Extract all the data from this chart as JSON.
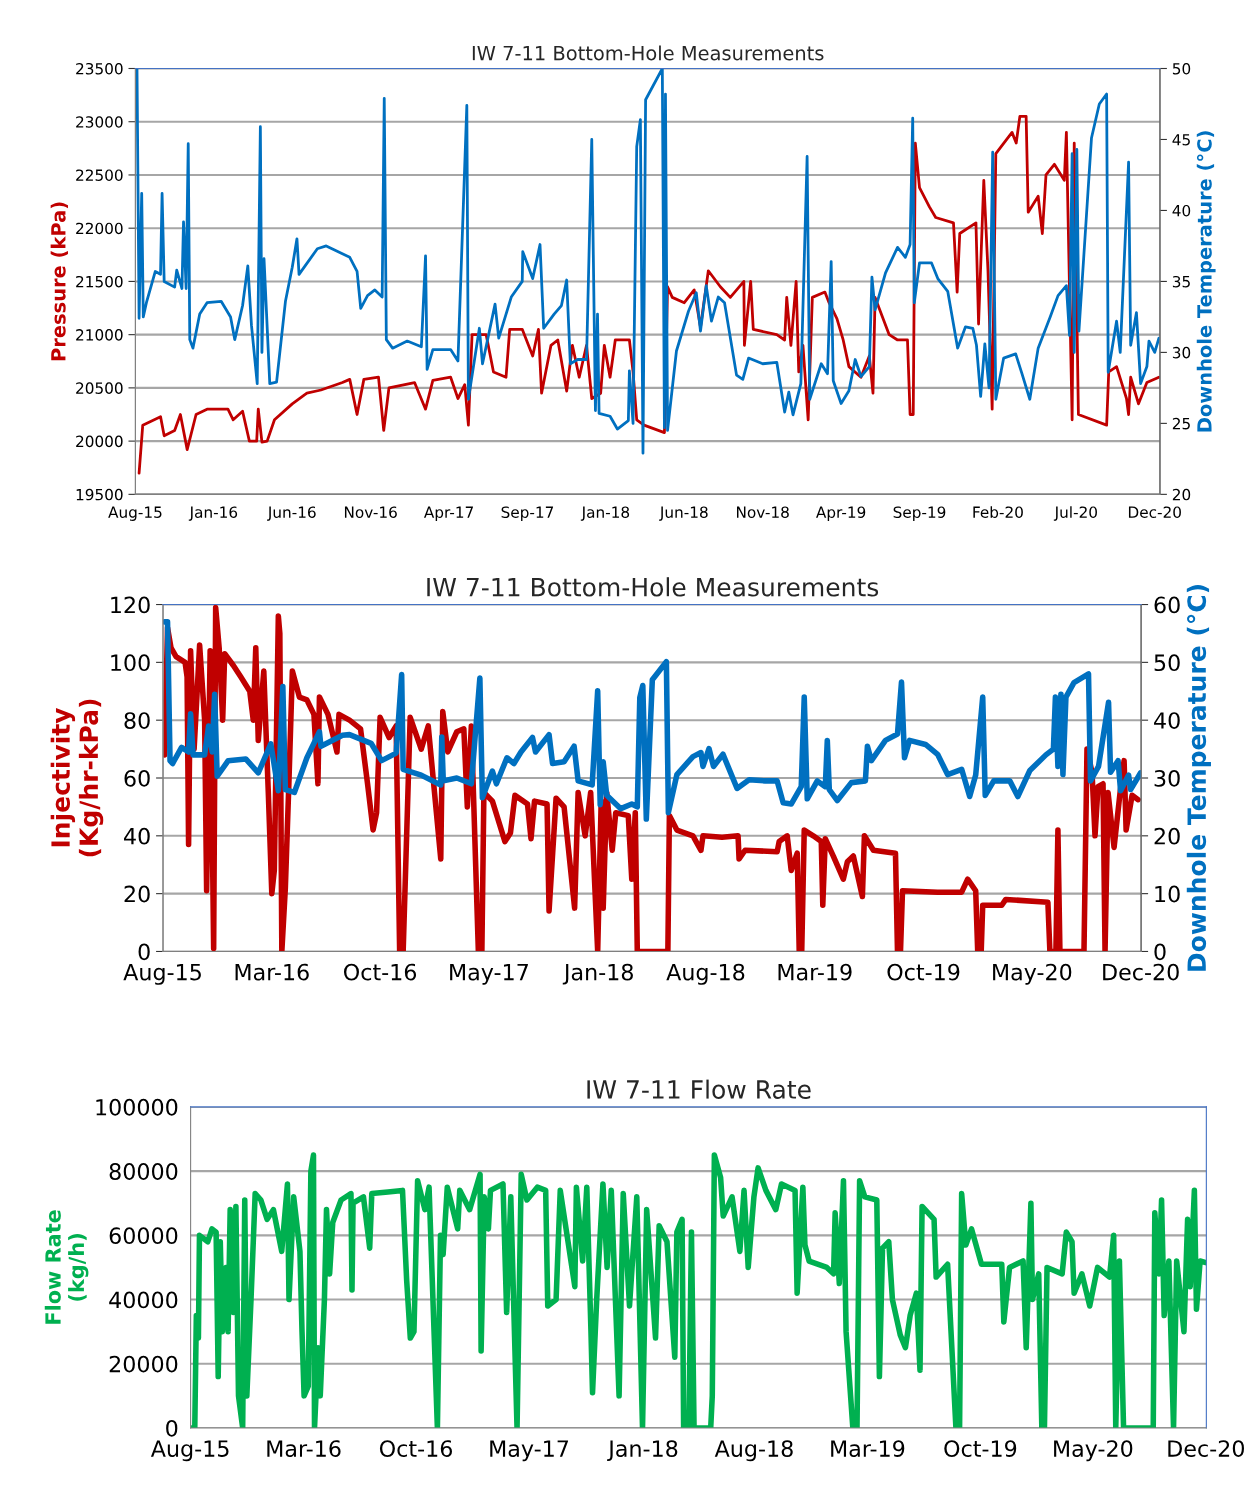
{
  "chart_data": [
    {
      "type": "line",
      "title": "IW 7-11 Bottom-Hole Measurements",
      "ylabel": "Pressure (kPa)",
      "y2label": "Downhole Temperature (°C)",
      "xlim": [
        "2015-08-15",
        "2020-12-26"
      ],
      "xticks": [
        {
          "value": "2015-08-15",
          "label": "Aug-15"
        },
        {
          "value": "2016-01-12",
          "label": "Jan-16"
        },
        {
          "value": "2016-06-10",
          "label": "Jun-16"
        },
        {
          "value": "2016-11-07",
          "label": "Nov-16"
        },
        {
          "value": "2017-04-06",
          "label": "Apr-17"
        },
        {
          "value": "2017-09-03",
          "label": "Sep-17"
        },
        {
          "value": "2018-01-31",
          "label": "Jan-18"
        },
        {
          "value": "2018-06-30",
          "label": "Jun-18"
        },
        {
          "value": "2018-11-27",
          "label": "Nov-18"
        },
        {
          "value": "2019-04-26",
          "label": "Apr-19"
        },
        {
          "value": "2019-09-23",
          "label": "Sep-19"
        },
        {
          "value": "2020-02-20",
          "label": "Feb-20"
        },
        {
          "value": "2020-07-19",
          "label": "Jul-20"
        },
        {
          "value": "2020-12-16",
          "label": "Dec-20"
        }
      ],
      "ylim": [
        19500,
        23500
      ],
      "yticks": [
        19500,
        20000,
        20500,
        21000,
        21500,
        22000,
        22500,
        23000,
        23500
      ],
      "y2lim": [
        20,
        50
      ],
      "y2ticks": [
        20,
        25,
        30,
        35,
        40,
        45,
        50
      ],
      "grid": "y",
      "series": [
        {
          "color": "#c00000",
          "x": [
            "2015-08-22",
            "2015-08-29",
            "2015-10-02",
            "2015-10-09",
            "2015-10-29",
            "2015-11-09",
            "2015-11-22",
            "2015-12-09",
            "2015-12-30",
            "2016-02-08",
            "2016-02-18",
            "2016-03-07",
            "2016-03-20",
            "2016-04-03",
            "2016-04-06",
            "2016-04-13",
            "2016-04-23",
            "2016-05-07",
            "2016-06-10",
            "2016-07-08",
            "2016-08-04",
            "2016-09-14",
            "2016-09-28",
            "2016-10-12",
            "2016-10-25",
            "2016-11-22",
            "2016-12-02",
            "2016-12-12",
            "2017-01-30",
            "2017-02-20",
            "2017-03-06",
            "2017-04-09",
            "2017-04-23",
            "2017-05-06",
            "2017-05-13",
            "2017-05-20",
            "2017-06-16",
            "2017-06-30",
            "2017-07-24",
            "2017-07-31",
            "2017-08-24",
            "2017-09-13",
            "2017-09-24",
            "2017-09-30",
            "2017-10-18",
            "2017-10-31",
            "2017-11-17",
            "2017-11-28",
            "2017-12-11",
            "2017-12-25",
            "2018-01-04",
            "2018-01-21",
            "2018-01-28",
            "2018-02-08",
            "2018-02-18",
            "2018-03-17",
            "2018-03-24",
            "2018-03-31",
            "2018-04-14",
            "2018-05-23",
            "2018-05-29",
            "2018-06-07",
            "2018-06-30",
            "2018-07-19",
            "2018-07-31",
            "2018-08-15",
            "2018-09-07",
            "2018-09-26",
            "2018-10-22",
            "2018-10-23",
            "2018-11-04",
            "2018-11-09",
            "2018-12-24",
            "2019-01-08",
            "2019-01-12",
            "2019-01-20",
            "2019-01-30",
            "2019-02-04",
            "2019-02-12",
            "2019-02-22",
            "2019-03-02",
            "2019-03-26",
            "2019-04-03",
            "2019-04-18",
            "2019-04-30",
            "2019-05-11",
            "2019-06-03",
            "2019-06-19",
            "2019-06-26",
            "2019-06-30",
            "2019-07-27",
            "2019-08-12",
            "2019-08-31",
            "2019-09-05",
            "2019-09-11",
            "2019-09-15",
            "2019-09-23",
            "2019-10-12",
            "2019-10-24",
            "2019-11-27",
            "2019-12-04",
            "2019-12-09",
            "2020-01-09",
            "2020-01-14",
            "2020-01-24",
            "2020-02-01",
            "2020-02-09",
            "2020-02-16",
            "2020-03-18",
            "2020-03-26",
            "2020-04-02",
            "2020-04-14",
            "2020-04-18",
            "2020-05-07",
            "2020-05-15",
            "2020-05-22",
            "2020-06-07",
            "2020-06-26",
            "2020-06-30",
            "2020-07-11",
            "2020-07-15",
            "2020-07-23",
            "2020-09-15",
            "2020-09-19",
            "2020-10-04",
            "2020-10-23",
            "2020-10-27",
            "2020-10-31",
            "2020-11-15",
            "2020-12-01",
            "2020-12-24"
          ],
          "values": [
            19700,
            20150,
            20230,
            20050,
            20100,
            20250,
            19920,
            20250,
            20300,
            20300,
            20200,
            20280,
            20000,
            20000,
            20300,
            19990,
            20000,
            20200,
            20350,
            20450,
            20480,
            20550,
            20580,
            20250,
            20580,
            20600,
            20100,
            20500,
            20550,
            20300,
            20570,
            20600,
            20400,
            20530,
            20150,
            21000,
            21000,
            20650,
            20600,
            21050,
            21050,
            20800,
            21050,
            20450,
            20900,
            20950,
            20470,
            20900,
            20600,
            20900,
            20400,
            20450,
            20900,
            20600,
            20950,
            20950,
            20650,
            20200,
            20150,
            20080,
            21450,
            21350,
            21300,
            21420,
            21070,
            21600,
            21450,
            21350,
            21500,
            20900,
            21500,
            21050,
            21000,
            20950,
            21350,
            20900,
            21500,
            20650,
            20900,
            20200,
            21350,
            21400,
            21300,
            21150,
            20950,
            20700,
            20600,
            20800,
            20450,
            21350,
            21000,
            20950,
            20950,
            20250,
            20250,
            22800,
            22380,
            22200,
            22100,
            22050,
            21400,
            21950,
            22050,
            21100,
            22450,
            21600,
            20300,
            22700,
            22900,
            22800,
            23050,
            23050,
            22150,
            22300,
            21950,
            22500,
            22600,
            22450,
            22900,
            20200,
            22800,
            20250,
            20150,
            20650,
            20700,
            20400,
            20250,
            20600,
            20350,
            20550,
            20600
          ]
        },
        {
          "color": "#0070c0",
          "axis": "y2",
          "x": [
            "2015-08-18",
            "2015-08-22",
            "2015-08-27",
            "2015-08-30",
            "2015-09-05",
            "2015-09-22",
            "2015-10-02",
            "2015-10-05",
            "2015-10-09",
            "2015-10-29",
            "2015-11-02",
            "2015-11-12",
            "2015-11-15",
            "2015-11-20",
            "2015-11-24",
            "2015-11-27",
            "2015-12-03",
            "2015-12-16",
            "2015-12-30",
            "2016-01-26",
            "2016-02-13",
            "2016-02-21",
            "2016-03-07",
            "2016-03-17",
            "2016-03-24",
            "2016-04-04",
            "2016-04-10",
            "2016-04-13",
            "2016-04-17",
            "2016-04-28",
            "2016-05-11",
            "2016-05-28",
            "2016-06-10",
            "2016-06-19",
            "2016-06-23",
            "2016-07-28",
            "2016-08-14",
            "2016-09-28",
            "2016-10-12",
            "2016-10-19",
            "2016-11-01",
            "2016-11-15",
            "2016-11-29",
            "2016-12-03",
            "2016-12-07",
            "2016-12-19",
            "2017-01-16",
            "2017-02-12",
            "2017-02-20",
            "2017-02-23",
            "2017-03-06",
            "2017-04-09",
            "2017-04-23",
            "2017-05-10",
            "2017-05-13",
            "2017-06-03",
            "2017-06-09",
            "2017-07-03",
            "2017-07-10",
            "2017-08-03",
            "2017-08-24",
            "2017-08-25",
            "2017-09-13",
            "2017-09-27",
            "2017-10-04",
            "2017-10-24",
            "2017-11-07",
            "2017-11-17",
            "2017-11-24",
            "2017-12-08",
            "2017-12-25",
            "2018-01-04",
            "2018-01-11",
            "2018-01-15",
            "2018-01-18",
            "2018-02-08",
            "2018-02-22",
            "2018-03-15",
            "2018-03-17",
            "2018-03-24",
            "2018-03-31",
            "2018-04-07",
            "2018-04-12",
            "2018-04-17",
            "2018-05-19",
            "2018-05-23",
            "2018-05-25",
            "2018-05-29",
            "2018-06-15",
            "2018-07-08",
            "2018-07-23",
            "2018-07-31",
            "2018-08-11",
            "2018-08-21",
            "2018-09-03",
            "2018-09-15",
            "2018-10-08",
            "2018-10-20",
            "2018-10-31",
            "2018-11-27",
            "2018-12-24",
            "2019-01-08",
            "2019-01-16",
            "2019-01-24",
            "2019-02-08",
            "2019-02-20",
            "2019-02-25",
            "2019-03-19",
            "2019-03-31",
            "2019-04-07",
            "2019-04-11",
            "2019-04-26",
            "2019-05-11",
            "2019-05-23",
            "2019-06-03",
            "2019-06-19",
            "2019-06-24",
            "2019-06-30",
            "2019-07-20",
            "2019-08-12",
            "2019-08-27",
            "2019-09-05",
            "2019-09-10",
            "2019-09-13",
            "2019-09-23",
            "2019-10-16",
            "2019-10-28",
            "2019-11-16",
            "2019-12-05",
            "2019-12-20",
            "2020-01-03",
            "2020-01-10",
            "2020-01-18",
            "2020-01-26",
            "2020-02-03",
            "2020-02-10",
            "2020-02-16",
            "2020-03-02",
            "2020-03-25",
            "2020-04-06",
            "2020-04-21",
            "2020-05-07",
            "2020-05-30",
            "2020-06-14",
            "2020-06-30",
            "2020-07-06",
            "2020-07-11",
            "2020-07-15",
            "2020-07-20",
            "2020-07-24",
            "2020-08-17",
            "2020-09-01",
            "2020-09-15",
            "2020-09-18",
            "2020-10-04",
            "2020-10-11",
            "2020-10-27",
            "2020-10-31",
            "2020-11-11",
            "2020-11-19",
            "2020-12-01",
            "2020-12-05",
            "2020-12-16",
            "2020-12-24"
          ],
          "values": [
            50,
            32.4,
            41.2,
            32.5,
            33.5,
            35.7,
            35.5,
            41.2,
            35,
            34.6,
            35.8,
            34.5,
            39.2,
            34.5,
            44.7,
            30.9,
            30.3,
            32.7,
            33.5,
            33.6,
            32.5,
            30.9,
            33.3,
            36.1,
            31.9,
            27.8,
            45.9,
            30,
            36.6,
            27.8,
            27.9,
            33.6,
            36,
            38,
            35.5,
            37.3,
            37.5,
            36.7,
            35.7,
            33.1,
            34,
            34.4,
            33.9,
            47.9,
            30.9,
            30.3,
            30.8,
            30.4,
            36.8,
            28.8,
            30.2,
            30.2,
            29.4,
            47.4,
            26.7,
            31.7,
            29.2,
            33.4,
            31,
            33.9,
            35,
            37.1,
            35.2,
            37.6,
            31.7,
            32.7,
            33.3,
            35.1,
            29.2,
            29.5,
            29.5,
            45,
            25.9,
            32.7,
            25.7,
            25.5,
            24.6,
            25.2,
            28.7,
            25,
            44.5,
            46.4,
            22.9,
            47.8,
            50,
            24.7,
            48.2,
            24.5,
            30.1,
            32.9,
            34.2,
            31.5,
            34.7,
            32.2,
            33.9,
            33.5,
            28.4,
            28.1,
            29.6,
            29.2,
            29.3,
            25.8,
            27.2,
            25.6,
            27.8,
            43.8,
            26.7,
            29.2,
            28.5,
            36.4,
            28,
            26.4,
            27.3,
            29.5,
            28.3,
            29,
            35.3,
            33,
            35.6,
            37.4,
            36.7,
            37.6,
            46.5,
            33.5,
            36.3,
            36.3,
            35.2,
            34.3,
            30.3,
            31.8,
            31.7,
            30.5,
            26.9,
            30.6,
            27.5,
            44.1,
            26.7,
            29.6,
            29.9,
            28.5,
            26.7,
            30.3,
            32.5,
            34,
            34.7,
            31.2,
            44,
            30,
            44.3,
            31.5,
            45.1,
            47.5,
            48.2,
            28.6,
            32.2,
            30,
            43.4,
            30.5,
            32.8,
            27.8,
            29,
            30.8,
            30,
            31
          ]
        }
      ]
    },
    {
      "type": "line",
      "title": "IW 7-11 Bottom-Hole Measurements",
      "ylabel": "Injectivity\n(Kg/hr-kPa)",
      "y2label": "Downhole Temperature (°C)",
      "xlim": [
        "2015-08-15",
        "2020-12-17"
      ],
      "xticks": [
        {
          "value": "2015-08-15",
          "label": "Aug-15"
        },
        {
          "value": "2016-03-19",
          "label": "Mar-16"
        },
        {
          "value": "2016-10-21",
          "label": "Oct-16"
        },
        {
          "value": "2017-05-26",
          "label": "May-17"
        },
        {
          "value": "2018-01-01",
          "label": "Jan-18"
        },
        {
          "value": "2018-08-02",
          "label": "Aug-18"
        },
        {
          "value": "2019-03-07",
          "label": "Mar-19"
        },
        {
          "value": "2019-10-10",
          "label": "Oct-19"
        },
        {
          "value": "2020-05-13",
          "label": "May-20"
        },
        {
          "value": "2020-12-16",
          "label": "Dec-20"
        }
      ],
      "ylim": [
        0,
        120
      ],
      "yticks": [
        0,
        20,
        40,
        60,
        80,
        100,
        120
      ],
      "y2lim": [
        0,
        60
      ],
      "y2ticks": [
        0,
        10,
        20,
        30,
        40,
        50,
        60
      ],
      "grid": "y",
      "series": [
        {
          "color": "#c00000",
          "x": [
            "2015-08-18",
            "2015-08-24",
            "2015-08-31",
            "2015-09-10",
            "2015-09-28",
            "2015-10-02",
            "2015-10-05",
            "2015-10-09",
            "2015-10-16",
            "2015-10-27",
            "2015-11-06",
            "2015-11-10",
            "2015-11-17",
            "2015-11-24",
            "2015-11-28",
            "2015-12-05",
            "2015-12-12",
            "2015-12-16",
            "2016-01-02",
            "2016-01-17",
            "2016-02-04",
            "2016-02-11",
            "2016-02-16",
            "2016-02-21",
            "2016-03-03",
            "2016-03-12",
            "2016-03-19",
            "2016-03-24",
            "2016-04-01",
            "2016-04-04",
            "2016-04-08",
            "2016-04-15",
            "2016-04-22",
            "2016-04-29",
            "2016-05-13",
            "2016-05-28",
            "2016-06-11",
            "2016-06-19",
            "2016-06-22",
            "2016-07-09",
            "2016-07-27",
            "2016-07-31",
            "2016-08-21",
            "2016-09-12",
            "2016-09-26",
            "2016-10-07",
            "2016-10-14",
            "2016-10-21",
            "2016-11-08",
            "2016-11-22",
            "2016-11-29",
            "2016-12-06",
            "2016-12-20",
            "2017-01-11",
            "2017-01-25",
            "2017-02-19",
            "2017-02-23",
            "2017-03-05",
            "2017-03-23",
            "2017-04-06",
            "2017-04-13",
            "2017-04-21",
            "2017-05-05",
            "2017-05-12",
            "2017-05-16",
            "2017-06-02",
            "2017-06-27",
            "2017-07-08",
            "2017-07-17",
            "2017-08-11",
            "2017-08-18",
            "2017-08-25",
            "2017-09-19",
            "2017-09-23",
            "2017-10-07",
            "2017-10-23",
            "2017-11-13",
            "2017-11-20",
            "2017-12-04",
            "2017-12-15",
            "2017-12-29",
            "2018-01-05",
            "2018-01-09",
            "2018-01-16",
            "2018-01-27",
            "2018-02-03",
            "2018-02-28",
            "2018-03-07",
            "2018-03-14",
            "2018-03-18",
            "2018-05-18",
            "2018-05-21",
            "2018-06-05",
            "2018-07-07",
            "2018-07-23",
            "2018-07-27",
            "2018-09-03",
            "2018-10-05",
            "2018-10-07",
            "2018-10-19",
            "2018-12-22",
            "2018-12-26",
            "2019-01-11",
            "2019-01-19",
            "2019-01-31",
            "2019-02-04",
            "2019-02-09",
            "2019-02-14",
            "2019-03-04",
            "2019-03-20",
            "2019-03-23",
            "2019-03-28",
            "2019-04-13",
            "2019-05-03",
            "2019-05-11",
            "2019-05-23",
            "2019-06-10",
            "2019-06-14",
            "2019-07-02",
            "2019-08-15",
            "2019-08-19",
            "2019-08-25",
            "2019-08-29",
            "2019-11-07",
            "2019-12-25",
            "2020-01-06",
            "2020-01-22",
            "2020-01-26",
            "2020-02-02",
            "2020-02-05",
            "2020-03-14",
            "2020-03-22",
            "2020-06-14",
            "2020-06-18",
            "2020-06-30",
            "2020-07-04",
            "2020-07-08",
            "2020-08-25",
            "2020-08-31",
            "2020-09-10",
            "2020-09-16",
            "2020-09-22",
            "2020-10-02",
            "2020-10-06",
            "2020-10-12",
            "2020-10-24",
            "2020-11-05",
            "2020-11-13",
            "2020-11-17",
            "2020-11-29",
            "2020-12-11"
          ],
          "values": [
            68,
            112,
            105,
            102,
            100,
            95,
            37,
            104,
            70,
            106,
            80,
            21,
            104,
            1,
            119,
            105,
            80,
            103,
            99,
            95,
            90,
            80,
            105,
            73,
            97,
            55,
            20,
            28,
            116,
            110,
            0,
            22,
            58,
            97,
            88,
            87,
            82,
            58,
            88,
            82,
            69,
            82,
            80,
            77,
            58,
            42,
            48,
            81,
            74,
            78,
            0,
            0,
            81,
            70,
            78,
            32,
            83,
            69,
            76,
            77,
            50,
            78,
            0,
            0,
            55,
            52,
            38,
            41,
            54,
            51,
            39,
            52,
            51,
            14,
            53,
            50,
            15,
            55,
            40,
            55,
            0,
            52,
            15,
            55,
            35,
            48,
            47,
            25,
            48,
            0,
            0,
            47,
            42,
            40,
            35,
            40,
            39.5,
            40,
            32,
            35,
            34.5,
            38,
            40,
            28,
            34,
            0,
            0,
            42,
            40,
            38,
            16,
            39,
            33,
            25,
            31,
            33,
            19,
            40,
            35,
            34,
            0,
            0,
            21,
            20.5,
            20.5,
            25,
            21,
            0,
            0,
            16,
            16,
            18,
            17,
            0,
            0,
            42,
            0,
            0,
            70,
            62,
            40,
            57,
            58,
            0,
            55,
            36,
            55,
            66,
            42,
            54,
            52.5
          ]
        },
        {
          "color": "#0070c0",
          "axis": "y2",
          "x": [
            "2015-08-18",
            "2015-08-24",
            "2015-08-29",
            "2015-09-03",
            "2015-09-21",
            "2015-10-05",
            "2015-10-09",
            "2015-10-14",
            "2015-11-06",
            "2015-11-14",
            "2015-11-21",
            "2015-11-26",
            "2015-12-01",
            "2015-12-23",
            "2016-01-27",
            "2016-02-21",
            "2016-03-17",
            "2016-04-01",
            "2016-04-10",
            "2016-04-15",
            "2016-05-03",
            "2016-05-28",
            "2016-06-11",
            "2016-06-22",
            "2016-06-25",
            "2016-08-07",
            "2016-08-21",
            "2016-10-03",
            "2016-10-24",
            "2016-11-22",
            "2016-12-03",
            "2016-12-06",
            "2017-01-11",
            "2017-02-19",
            "2017-02-21",
            "2017-02-24",
            "2017-03-23",
            "2017-04-21",
            "2017-05-08",
            "2017-05-13",
            "2017-06-02",
            "2017-06-10",
            "2017-07-01",
            "2017-07-15",
            "2017-07-29",
            "2017-08-21",
            "2017-08-27",
            "2017-09-23",
            "2017-09-30",
            "2017-10-23",
            "2017-11-12",
            "2017-11-20",
            "2017-12-18",
            "2017-12-29",
            "2018-01-03",
            "2018-01-09",
            "2018-01-16",
            "2018-02-13",
            "2018-03-07",
            "2018-03-18",
            "2018-03-23",
            "2018-03-29",
            "2018-04-05",
            "2018-04-17",
            "2018-05-15",
            "2018-05-19",
            "2018-06-05",
            "2018-07-07",
            "2018-07-23",
            "2018-07-27",
            "2018-08-08",
            "2018-08-17",
            "2018-09-05",
            "2018-10-03",
            "2018-10-27",
            "2018-11-28",
            "2018-12-22",
            "2019-01-03",
            "2019-01-19",
            "2019-02-08",
            "2019-02-14",
            "2019-02-20",
            "2019-03-12",
            "2019-03-28",
            "2019-04-01",
            "2019-04-05",
            "2019-04-21",
            "2019-05-19",
            "2019-06-16",
            "2019-06-20",
            "2019-06-28",
            "2019-07-26",
            "2019-08-19",
            "2019-08-27",
            "2019-09-02",
            "2019-09-12",
            "2019-10-14",
            "2019-11-07",
            "2019-11-27",
            "2019-12-25",
            "2020-01-10",
            "2020-01-22",
            "2020-02-05",
            "2020-02-10",
            "2020-02-27",
            "2020-03-30",
            "2020-04-15",
            "2020-05-09",
            "2020-06-10",
            "2020-06-25",
            "2020-06-29",
            "2020-07-04",
            "2020-07-10",
            "2020-07-14",
            "2020-07-20",
            "2020-08-05",
            "2020-09-03",
            "2020-09-07",
            "2020-09-23",
            "2020-10-13",
            "2020-10-17",
            "2020-11-01",
            "2020-11-06",
            "2020-11-22",
            "2020-11-26",
            "2020-12-16"
          ],
          "values": [
            57,
            57,
            33,
            32.5,
            35.3,
            34.5,
            41.1,
            34,
            34,
            39,
            34.5,
            44.5,
            30.3,
            33,
            33.3,
            30.9,
            35.9,
            27.8,
            45.8,
            28,
            27.5,
            33.5,
            36,
            38,
            35.5,
            37.4,
            37.5,
            36,
            33,
            34.3,
            47.9,
            31.5,
            30.5,
            28.8,
            37.1,
            29.5,
            30,
            29,
            47.3,
            26.6,
            31.2,
            29,
            33.5,
            32.5,
            34.5,
            37,
            34.5,
            37.5,
            32.5,
            32.8,
            35.5,
            29.5,
            28.8,
            45.1,
            25.4,
            32.8,
            27,
            24.7,
            25.5,
            25,
            43.9,
            46,
            22.9,
            47,
            50.1,
            24,
            30.6,
            33.7,
            34.4,
            32,
            35.1,
            32,
            34.1,
            28.2,
            29.7,
            29.5,
            29.5,
            25.7,
            25.5,
            28.5,
            44,
            26.4,
            29.5,
            28.5,
            36.5,
            28,
            26.1,
            29.2,
            29.5,
            35.5,
            33,
            36.5,
            37.6,
            46.6,
            33.5,
            36.5,
            35.8,
            34.1,
            30.6,
            31.5,
            26.8,
            30.5,
            44,
            27,
            29.5,
            29.5,
            26.8,
            31.3,
            34,
            35,
            44,
            32,
            44.5,
            30.6,
            44,
            46.5,
            48,
            29.5,
            32,
            43.1,
            31,
            33,
            27.8,
            30.5,
            28,
            30.9
          ]
        }
      ]
    },
    {
      "type": "line",
      "title": "IW 7-11 Flow Rate",
      "ylabel": "Flow Rate\n(kg/h)",
      "xlim": [
        "2015-08-15",
        "2020-12-17"
      ],
      "xticks": [
        {
          "value": "2015-08-15",
          "label": "Aug-15"
        },
        {
          "value": "2016-03-19",
          "label": "Mar-16"
        },
        {
          "value": "2016-10-21",
          "label": "Oct-16"
        },
        {
          "value": "2017-05-26",
          "label": "May-17"
        },
        {
          "value": "2018-01-01",
          "label": "Jan-18"
        },
        {
          "value": "2018-08-02",
          "label": "Aug-18"
        },
        {
          "value": "2019-03-07",
          "label": "Mar-19"
        },
        {
          "value": "2019-10-10",
          "label": "Oct-19"
        },
        {
          "value": "2020-05-13",
          "label": "May-20"
        },
        {
          "value": "2020-12-16",
          "label": "Dec-20"
        }
      ],
      "ylim": [
        0,
        100000
      ],
      "yticks": [
        0,
        20000,
        40000,
        60000,
        80000,
        100000
      ],
      "grid": "y",
      "series": [
        {
          "color": "#00b050",
          "x": [
            "2015-08-17",
            "2015-08-23",
            "2015-08-26",
            "2015-08-30",
            "2015-09-01",
            "2015-09-17",
            "2015-09-25",
            "2015-10-03",
            "2015-10-07",
            "2015-10-11",
            "2015-10-15",
            "2015-10-22",
            "2015-10-26",
            "2015-10-30",
            "2015-11-05",
            "2015-11-10",
            "2015-11-15",
            "2015-11-23",
            "2015-11-27",
            "2015-12-01",
            "2015-12-09",
            "2015-12-17",
            "2015-12-28",
            "2016-01-09",
            "2016-01-21",
            "2016-02-06",
            "2016-02-17",
            "2016-02-20",
            "2016-02-29",
            "2016-03-12",
            "2016-03-16",
            "2016-03-20",
            "2016-03-28",
            "2016-04-02",
            "2016-04-07",
            "2016-04-09",
            "2016-04-16",
            "2016-04-20",
            "2016-04-28",
            "2016-05-02",
            "2016-05-08",
            "2016-05-14",
            "2016-05-30",
            "2016-06-18",
            "2016-06-20",
            "2016-06-22",
            "2016-07-12",
            "2016-07-24",
            "2016-07-28",
            "2016-08-28",
            "2016-09-25",
            "2016-10-03",
            "2016-10-10",
            "2016-10-17",
            "2016-10-24",
            "2016-11-07",
            "2016-11-15",
            "2016-12-01",
            "2016-12-07",
            "2016-12-12",
            "2016-12-20",
            "2017-01-09",
            "2017-01-13",
            "2017-02-01",
            "2017-02-21",
            "2017-02-23",
            "2017-03-01",
            "2017-03-09",
            "2017-03-13",
            "2017-04-06",
            "2017-04-13",
            "2017-04-21",
            "2017-05-03",
            "2017-05-11",
            "2017-05-22",
            "2017-06-11",
            "2017-06-27",
            "2017-07-01",
            "2017-07-17",
            "2017-07-25",
            "2017-08-22",
            "2017-08-25",
            "2017-09-06",
            "2017-09-14",
            "2017-09-22",
            "2017-09-25",
            "2017-10-03",
            "2017-10-15",
            "2017-10-23",
            "2017-10-31",
            "2017-11-15",
            "2017-11-23",
            "2017-12-05",
            "2017-12-19",
            "2017-12-30",
            "2018-01-07",
            "2018-01-24",
            "2018-01-31",
            "2018-02-15",
            "2018-03-02",
            "2018-03-06",
            "2018-03-16",
            "2018-03-19",
            "2018-03-29",
            "2018-04-03",
            "2018-04-08",
            "2018-05-10",
            "2018-05-13",
            "2018-05-17",
            "2018-05-29",
            "2018-06-03",
            "2018-06-20",
            "2018-07-05",
            "2018-07-13",
            "2018-07-21",
            "2018-08-01",
            "2018-08-09",
            "2018-08-24",
            "2018-09-12",
            "2018-09-23",
            "2018-10-19",
            "2018-10-23",
            "2018-11-03",
            "2018-11-07",
            "2018-11-15",
            "2018-12-19",
            "2019-01-01",
            "2019-01-04",
            "2019-01-12",
            "2019-01-20",
            "2019-01-25",
            "2019-02-07",
            "2019-02-15",
            "2019-02-20",
            "2019-03-02",
            "2019-03-25",
            "2019-03-30",
            "2019-04-05",
            "2019-04-17",
            "2019-04-24",
            "2019-05-09",
            "2019-05-19",
            "2019-05-28",
            "2019-06-09",
            "2019-06-16",
            "2019-06-20",
            "2019-07-13",
            "2019-07-17",
            "2019-08-08",
            "2019-08-24",
            "2019-08-31",
            "2019-09-04",
            "2019-09-12",
            "2019-09-23",
            "2019-10-12",
            "2019-11-20",
            "2019-11-24",
            "2019-12-05",
            "2019-12-31",
            "2020-01-06",
            "2020-01-15",
            "2020-01-18",
            "2020-01-30",
            "2020-02-05",
            "2020-02-10",
            "2020-02-15",
            "2020-03-15",
            "2020-03-23",
            "2020-04-03",
            "2020-04-07",
            "2020-04-22",
            "2020-05-07",
            "2020-05-22",
            "2020-06-14",
            "2020-06-22",
            "2020-06-26",
            "2020-07-03",
            "2020-07-11",
            "2020-09-06",
            "2020-09-09",
            "2020-09-17",
            "2020-09-22",
            "2020-09-27",
            "2020-10-06",
            "2020-10-15",
            "2020-10-21",
            "2020-11-04",
            "2020-11-11",
            "2020-11-16",
            "2020-11-24",
            "2020-11-28",
            "2020-12-05",
            "2020-12-16"
          ],
          "values": [
            0,
            0,
            35000,
            28000,
            60000,
            58000,
            62000,
            61000,
            16000,
            58000,
            30000,
            50000,
            30000,
            68000,
            36000,
            69000,
            10000,
            0,
            71000,
            10000,
            40000,
            73000,
            71000,
            65000,
            68000,
            55000,
            76000,
            40000,
            72000,
            55000,
            30000,
            10000,
            13000,
            80000,
            85000,
            0,
            25000,
            10000,
            40000,
            68000,
            48000,
            64000,
            71000,
            73000,
            43000,
            70000,
            72000,
            56000,
            73000,
            73500,
            74000,
            46000,
            28000,
            30000,
            77000,
            68000,
            75000,
            0,
            60000,
            54000,
            75000,
            62000,
            74000,
            68000,
            79000,
            24000,
            72000,
            62000,
            74000,
            76000,
            36000,
            72000,
            0,
            79000,
            71000,
            75000,
            74000,
            38000,
            40000,
            74000,
            44000,
            75000,
            52000,
            75000,
            30000,
            11000,
            40000,
            76000,
            50000,
            74000,
            10000,
            73000,
            38000,
            72000,
            0,
            68000,
            28000,
            63000,
            58000,
            22000,
            61000,
            65000,
            0,
            0,
            61000,
            0,
            0,
            10000,
            85000,
            78000,
            66000,
            72000,
            55000,
            74000,
            50000,
            72000,
            81000,
            74000,
            68000,
            76000,
            74000,
            42000,
            75000,
            57000,
            52000,
            50000,
            48000,
            67000,
            45000,
            77000,
            30000,
            0,
            0,
            77000,
            72000,
            71000,
            16000,
            56000,
            58000,
            40000,
            29000,
            25000,
            35000,
            42000,
            18000,
            69000,
            65000,
            47000,
            51000,
            0,
            0,
            73000,
            57000,
            62000,
            51000,
            51000,
            33000,
            50000,
            52000,
            25000,
            70000,
            40000,
            48000,
            0,
            0,
            50000,
            48000,
            61000,
            58000,
            42000,
            48000,
            38000,
            50000,
            47000,
            60000,
            0,
            52000,
            0,
            0,
            67000,
            48000,
            71000,
            35000,
            52000,
            0,
            52000,
            30000,
            65000,
            44000,
            74000,
            37000,
            52000,
            51500
          ]
        }
      ]
    }
  ]
}
